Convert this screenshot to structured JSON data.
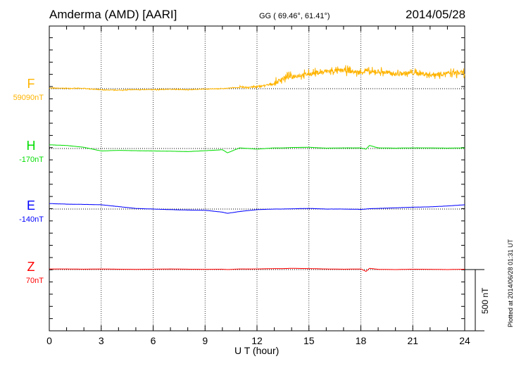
{
  "chart_data": {
    "type": "line",
    "title": "Amderma (AMD)  [AARI]",
    "coords": "GG ( 69.46°,  61.41°)",
    "date": "2014/05/28",
    "xlabel": "U T (hour)",
    "xlim": [
      0,
      24
    ],
    "xticks": [
      "0",
      "3",
      "6",
      "9",
      "12",
      "15",
      "18",
      "21",
      "24"
    ],
    "scale_label": "500 nT",
    "plotted_note": "Plotted at 2014/06/28 01:31 UT",
    "x": [
      0,
      1,
      2,
      3,
      4,
      5,
      6,
      7,
      8,
      9,
      10,
      10.3,
      11,
      12,
      13,
      13.5,
      14,
      15,
      16,
      17,
      18,
      18.3,
      18.5,
      19,
      20,
      21,
      22,
      23,
      24
    ],
    "series": [
      {
        "name": "F",
        "baseline_label": "59090nT",
        "color": "#ffb400",
        "noise": 1,
        "values": [
          5,
          3,
          2,
          -10,
          -12,
          -8,
          -8,
          -5,
          -8,
          -3,
          0,
          5,
          10,
          15,
          40,
          85,
          100,
          120,
          140,
          150,
          130,
          150,
          130,
          140,
          120,
          130,
          115,
          125,
          130
        ]
      },
      {
        "name": "H",
        "baseline_label": "-170nT",
        "color": "#00dd00",
        "noise": 0.2,
        "values": [
          30,
          25,
          10,
          -20,
          -15,
          -18,
          -20,
          -22,
          -25,
          -18,
          -10,
          -35,
          5,
          -5,
          5,
          5,
          8,
          10,
          3,
          5,
          5,
          -5,
          25,
          5,
          3,
          5,
          5,
          3,
          5
        ]
      },
      {
        "name": "E",
        "baseline_label": "-140nT",
        "color": "#0000ff",
        "noise": 0.2,
        "values": [
          45,
          40,
          38,
          35,
          20,
          5,
          0,
          -5,
          -8,
          -10,
          -25,
          -35,
          -20,
          -5,
          0,
          0,
          2,
          5,
          0,
          0,
          -3,
          0,
          3,
          5,
          10,
          15,
          18,
          25,
          35
        ]
      },
      {
        "name": "Z",
        "baseline_label": "70nT",
        "color": "#ff0000",
        "noise": 0.1,
        "values": [
          5,
          5,
          3,
          5,
          3,
          2,
          3,
          5,
          3,
          2,
          3,
          0,
          5,
          5,
          8,
          8,
          10,
          8,
          5,
          3,
          5,
          -15,
          10,
          2,
          0,
          3,
          2,
          0,
          3
        ]
      }
    ]
  }
}
